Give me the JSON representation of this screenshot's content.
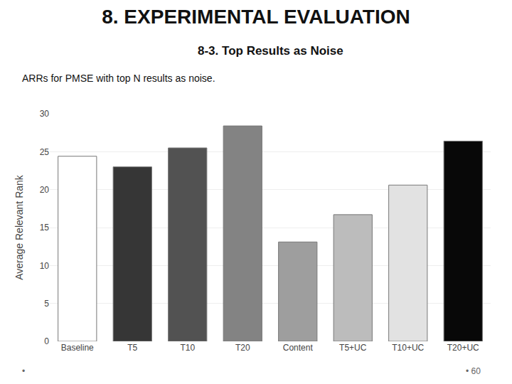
{
  "chart_data": {
    "type": "bar",
    "title": "8. EXPERIMENTAL EVALUATION",
    "subtitle": "8-3. Top Results as Noise",
    "annotations": [
      "ARRs for PMSE with top N results as noise.",
      "•",
      "• 60"
    ],
    "categories": [
      "Baseline",
      "T5",
      "T10",
      "T20",
      "Content",
      "T5+UC",
      "T10+UC",
      "T20+UC"
    ],
    "values": [
      24.4,
      23.0,
      25.5,
      28.4,
      13.1,
      16.7,
      20.6,
      26.4
    ],
    "colors": [
      "#ffffff",
      "#363636",
      "#525252",
      "#838383",
      "#9e9e9e",
      "#bcbcbc",
      "#e2e2e2",
      "#080808"
    ],
    "ylabel": "Average Relevant Rank",
    "ylim": [
      0,
      30
    ],
    "yticks": [
      0,
      5,
      10,
      15,
      20,
      25,
      30
    ],
    "grid": true
  }
}
